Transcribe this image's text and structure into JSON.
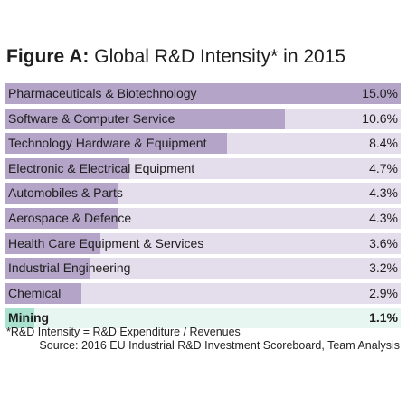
{
  "chart_data": {
    "type": "bar",
    "orientation": "horizontal",
    "title_bold": "Figure A:",
    "title_rest": "Global R&D Intensity* in 2015",
    "categories": [
      "Pharmaceuticals & Biotechnology",
      "Software & Computer Service",
      "Technology Hardware & Equipment",
      "Electronic & Electrical Equipment",
      "Automobiles & Parts",
      "Aerospace & Defence",
      "Health Care Equipment & Services",
      "Industrial Engineering",
      "Chemical",
      "Mining"
    ],
    "values": [
      15.0,
      10.6,
      8.4,
      4.7,
      4.3,
      4.3,
      3.6,
      3.2,
      2.9,
      1.1
    ],
    "value_labels": [
      "15.0%",
      "10.6%",
      "8.4%",
      "4.7%",
      "4.3%",
      "4.3%",
      "3.6%",
      "3.2%",
      "2.9%",
      "1.1%"
    ],
    "xlim": [
      0,
      15.0
    ],
    "highlighted_category": "Mining",
    "footnote": "*R&D Intensity = R&D Expenditure / Revenues",
    "source": "Source: 2016 EU Industrial R&D Investment Scoreboard, Team Analysis",
    "colors": {
      "bar_fill": "#b3a4c8",
      "bar_track": "#e4ddec",
      "highlight_fill": "#a9e3cf",
      "highlight_track": "#e8f6f1"
    }
  }
}
